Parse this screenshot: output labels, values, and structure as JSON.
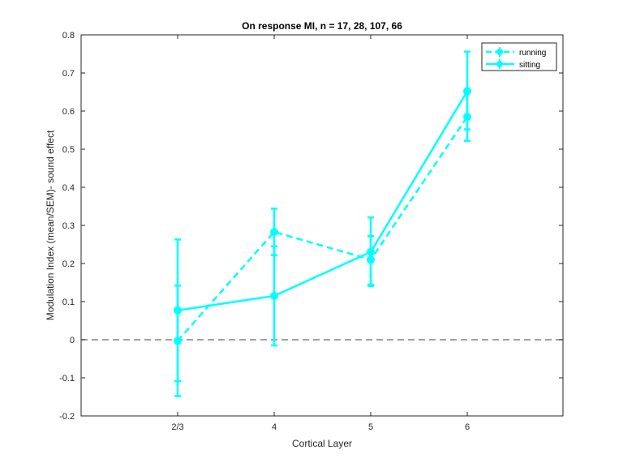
{
  "chart_data": {
    "type": "line",
    "title": "On response MI, n = 17, 28, 107, 66",
    "xlabel": "Cortical Layer",
    "ylabel": "Modulation Index (mean/SEM)- sound effect",
    "categories": [
      "2/3",
      "4",
      "5",
      "6"
    ],
    "ylim": [
      -0.2,
      0.8
    ],
    "yticks": [
      -0.2,
      -0.1,
      0,
      0.1,
      0.2,
      0.3,
      0.4,
      0.5,
      0.6,
      0.7,
      0.8
    ],
    "ytick_labels": [
      "-0.2",
      "-0.1",
      "0",
      "0.1",
      "0.2",
      "0.3",
      "0.4",
      "0.5",
      "0.6",
      "0.7",
      "0.8"
    ],
    "grid": false,
    "legend_position": "top-right",
    "reference_line": {
      "y": 0,
      "style": "dashed",
      "color": "#808080"
    },
    "series_color": "#00ffff",
    "series": [
      {
        "name": "running",
        "style": "dashed",
        "values": [
          -0.003,
          0.283,
          0.21,
          0.585
        ],
        "err_low": [
          0.145,
          0.061,
          0.066,
          0.063
        ],
        "err_high": [
          0.145,
          0.061,
          0.062,
          0.063
        ]
      },
      {
        "name": "sitting",
        "style": "solid",
        "values": [
          0.077,
          0.115,
          0.23,
          0.652
        ],
        "err_low": [
          0.186,
          0.13,
          0.089,
          0.1
        ],
        "err_high": [
          0.186,
          0.13,
          0.091,
          0.104
        ]
      }
    ]
  }
}
